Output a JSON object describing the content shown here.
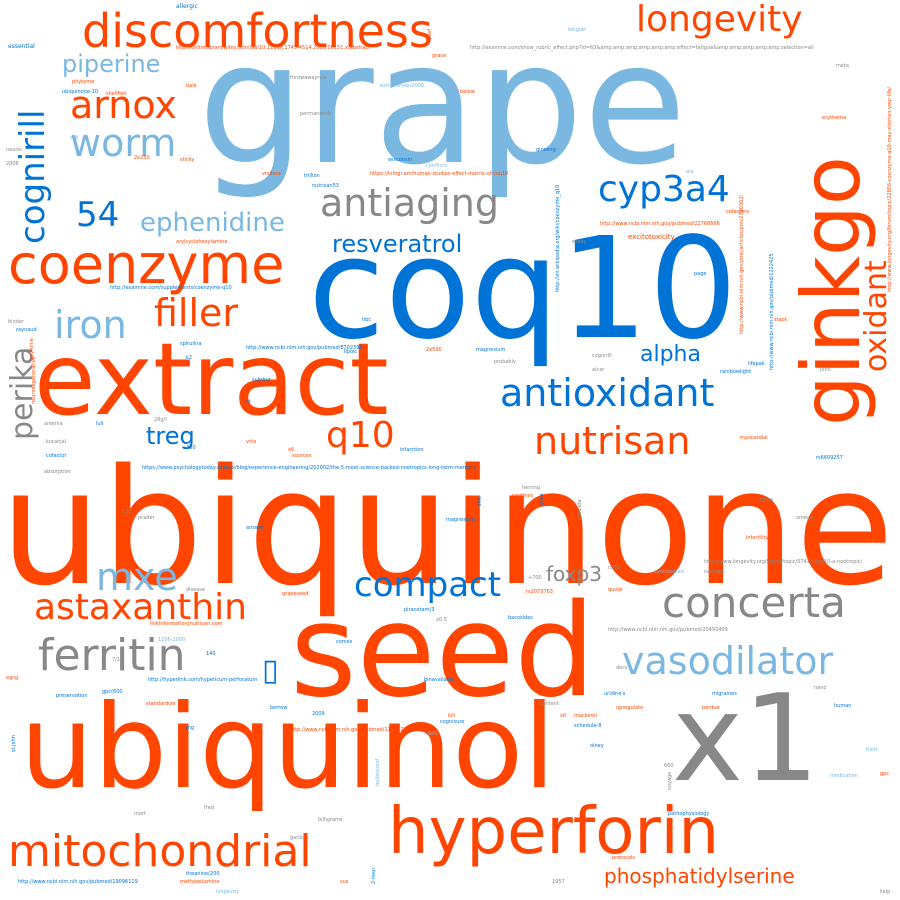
{
  "colors": {
    "orange": "#ff4500",
    "blue": "#0073d6",
    "light_blue": "#7ab8e2",
    "gray": "#888888"
  },
  "words": [
    {
      "text": "ubiquinone",
      "color": "orange"
    },
    {
      "text": "grape",
      "color": "light_blue"
    },
    {
      "text": "coq10",
      "color": "blue"
    },
    {
      "text": "seed",
      "color": "orange"
    },
    {
      "text": "extract",
      "color": "orange"
    },
    {
      "text": "ubiquinol",
      "color": "orange"
    },
    {
      "text": "x1",
      "color": "gray"
    },
    {
      "text": "hyperforin",
      "color": "orange"
    },
    {
      "text": "ginkgo",
      "color": "orange"
    },
    {
      "text": "discomfortness",
      "color": "orange"
    },
    {
      "text": "coenzyme",
      "color": "orange"
    },
    {
      "text": "longevity",
      "color": "orange"
    },
    {
      "text": "mitochondrial",
      "color": "orange"
    },
    {
      "text": "antioxidant",
      "color": "blue"
    },
    {
      "text": "concerta",
      "color": "gray"
    },
    {
      "text": "antiaging",
      "color": "gray"
    },
    {
      "text": "nutrisan",
      "color": "orange"
    },
    {
      "text": "cognirill",
      "color": "blue"
    },
    {
      "text": "vasodilator",
      "color": "light_blue"
    },
    {
      "text": "ferritin",
      "color": "gray"
    },
    {
      "text": "astaxanthin",
      "color": "orange"
    },
    {
      "text": "compact",
      "color": "blue"
    },
    {
      "text": "cyp3a4",
      "color": "blue"
    },
    {
      "text": "oxidant",
      "color": "orange"
    },
    {
      "text": "arnox",
      "color": "orange"
    },
    {
      "text": "worm",
      "color": "light_blue"
    },
    {
      "text": "filler",
      "color": "orange"
    },
    {
      "text": "iron",
      "color": "light_blue"
    },
    {
      "text": "q10",
      "color": "orange"
    },
    {
      "text": "mxe",
      "color": "light_blue"
    },
    {
      "text": "perika",
      "color": "gray"
    },
    {
      "text": "phosphatidylserine",
      "color": "orange"
    },
    {
      "text": "resveratrol",
      "color": "blue"
    },
    {
      "text": "ephenidine",
      "color": "light_blue"
    },
    {
      "text": "piperine",
      "color": "light_blue"
    },
    {
      "text": "54",
      "color": "blue"
    },
    {
      "text": "alpha",
      "color": "blue"
    },
    {
      "text": "treg",
      "color": "blue"
    },
    {
      "text": "foxp3",
      "color": "gray"
    },
    {
      "text": "excitotoxicity",
      "color": "orange"
    },
    {
      "text": "essential",
      "color": "blue"
    },
    {
      "text": "allergic",
      "color": "blue"
    },
    {
      "text": "http://onlinelibrary.wiley.com/doi/10.1111/j.1745-4514.2008.00151.x/abstract",
      "color": "orange"
    },
    {
      "text": "http://examine.com/show_rubric_effect.php?id=63&amp;amp;amp;amp;amp;amp;effect=fatigue&amp;amp;amp;amp;amp;selection=all",
      "color": "gray"
    },
    {
      "text": "https://www.psychologytoday.com/us/blog/experience-engineering/202002/the-5-most-science-backed-nootropics-long-term-memory",
      "color": "blue"
    },
    {
      "text": "http://www.ncbi.nlm.nih.gov/pubmed/8702395",
      "color": "blue"
    },
    {
      "text": "http://www.ncbi.nlm.nih.gov/pubmed/20493499",
      "color": "gray"
    },
    {
      "text": "http://www.ncbi.nlm.nih.gov/pubmed/22768666",
      "color": "orange"
    },
    {
      "text": "http://www.ncbi.nlm.nih.gov/pubmed/11983225",
      "color": "orange"
    },
    {
      "text": "http://www.ncbi.nlm.nih.gov/pubmed/19096119",
      "color": "blue"
    },
    {
      "text": "http://www.longevity.org/forum/topic/57413-coq10-a-nootropic/",
      "color": "gray"
    },
    {
      "text": "https://infogr.am/human-studies-effect-matrix-of-coq10",
      "color": "orange"
    },
    {
      "text": "http://www.ncbi.nlm.nih.gov/pmc/articles/pmc2790362/",
      "color": "orange"
    },
    {
      "text": "http://www.ncbi.nlm.nih.gov/pubmed/1222425",
      "color": "blue"
    },
    {
      "text": "http://www.longevity.org/forum/topic/22856-coenzyme-q10-may-shorten-your-life/",
      "color": "orange"
    },
    {
      "text": "http://en.wikipedia.org/wiki/coenzyme_q10",
      "color": "blue"
    },
    {
      "text": "http://examine.com/supplements/coenzyme-q10",
      "color": "blue"
    },
    {
      "text": "http://hyperlink.com/hypericum-perforatum",
      "color": "blue"
    },
    {
      "text": "linkinformation[nutrisan.com",
      "color": "orange"
    },
    {
      "text": "phytome",
      "color": "orange"
    },
    {
      "text": "bale",
      "color": "orange"
    },
    {
      "text": "shellfish",
      "color": "orange"
    },
    {
      "text": "ubiquinone-10",
      "color": "blue"
    },
    {
      "text": "throwawayrule",
      "color": "gray"
    },
    {
      "text": "extraversion2006",
      "color": "light_blue"
    },
    {
      "text": "below",
      "color": "orange"
    },
    {
      "text": "ginseng",
      "color": "blue"
    },
    {
      "text": "wisconsin",
      "color": "blue"
    },
    {
      "text": "vinifera",
      "color": "orange"
    },
    {
      "text": "trillion",
      "color": "blue"
    },
    {
      "text": "nutrisan53",
      "color": "blue"
    },
    {
      "text": "sticky",
      "color": "orange"
    },
    {
      "text": "2x250",
      "color": "orange"
    },
    {
      "text": "arylcyclohexylamine",
      "color": "orange"
    },
    {
      "text": "binder",
      "color": "gray"
    },
    {
      "text": "raynaud",
      "color": "blue"
    },
    {
      "text": "peyronie",
      "color": "orange"
    },
    {
      "text": "spirulina",
      "color": "blue"
    },
    {
      "text": "lipoic",
      "color": "blue"
    },
    {
      "text": "magnesium",
      "color": "blue"
    },
    {
      "text": "cognirill",
      "color": "gray"
    },
    {
      "text": "lifepak",
      "color": "blue"
    },
    {
      "text": "rainbowlight",
      "color": "blue"
    },
    {
      "text": "myocardial",
      "color": "orange"
    },
    {
      "text": "infarction",
      "color": "blue"
    },
    {
      "text": "sardines",
      "color": "orange"
    },
    {
      "text": "herring",
      "color": "gray"
    },
    {
      "text": "magnesium",
      "color": "blue"
    },
    {
      "text": "piracetam(3",
      "color": "blue"
    },
    {
      "text": "bacosides",
      "color": "blue"
    },
    {
      "text": "x0.5",
      "color": "gray"
    },
    {
      "text": "quote",
      "color": "orange"
    },
    {
      "text": "naringin",
      "color": "gray"
    },
    {
      "text": "synthesized",
      "color": "light_blue"
    },
    {
      "text": "infertility",
      "color": "orange"
    },
    {
      "text": "rs6609257",
      "color": "blue"
    },
    {
      "text": "rs2073763",
      "color": "orange"
    },
    {
      "text": "binavailable",
      "color": "blue"
    },
    {
      "text": "uridine's",
      "color": "blue"
    },
    {
      "text": "migraines",
      "color": "blue"
    },
    {
      "text": "upregulate",
      "color": "orange"
    },
    {
      "text": "perdue",
      "color": "orange"
    },
    {
      "text": "human",
      "color": "blue"
    },
    {
      "text": "mackerel",
      "color": "orange"
    },
    {
      "text": "schedule-8",
      "color": "blue"
    },
    {
      "text": "olney",
      "color": "blue"
    },
    {
      "text": "pathophysiology",
      "color": "blue"
    },
    {
      "text": "preservation",
      "color": "blue"
    },
    {
      "text": "standardize",
      "color": "orange"
    },
    {
      "text": "borrow",
      "color": "blue"
    },
    {
      "text": "gpc(600",
      "color": "blue"
    },
    {
      "text": "cognisure",
      "color": "blue"
    },
    {
      "text": "content",
      "color": "gray"
    },
    {
      "text": "grapeseed",
      "color": "orange"
    },
    {
      "text": "disease",
      "color": "gray"
    },
    {
      "text": "prader",
      "color": "gray"
    },
    {
      "text": "answer",
      "color": "blue"
    },
    {
      "text": "absorption",
      "color": "gray"
    },
    {
      "text": "cofactor",
      "color": "blue"
    },
    {
      "text": "anemia",
      "color": "gray"
    },
    {
      "text": "lull",
      "color": "blue"
    },
    {
      "text": "vitis",
      "color": "orange"
    },
    {
      "text": "sources",
      "color": "orange"
    },
    {
      "text": "sulphur",
      "color": "blue"
    },
    {
      "text": "neurodegenerative",
      "color": "orange"
    },
    {
      "text": "egcg",
      "color": "orange"
    },
    {
      "text": "st.john",
      "color": "blue"
    },
    {
      "text": "methoxetamine",
      "color": "orange"
    },
    {
      "text": "theanine(200",
      "color": "blue"
    },
    {
      "text": "longevity",
      "color": "light_blue"
    },
    {
      "text": "bulletproof",
      "color": "light_blue"
    },
    {
      "text": "medication",
      "color": "light_blue"
    },
    {
      "text": "food",
      "color": "light_blue"
    },
    {
      "text": "gpc",
      "color": "orange"
    },
    {
      "text": "kelp",
      "color": "gray"
    },
    {
      "text": "protocols",
      "color": "orange"
    },
    {
      "text": "1957",
      "color": "gray"
    },
    {
      "text": "erythema",
      "color": "orange"
    },
    {
      "text": "stack",
      "color": "orange"
    },
    {
      "text": "cofactors",
      "color": "orange"
    },
    {
      "text": "meta",
      "color": "gray"
    },
    {
      "text": "belgian",
      "color": "light_blue"
    },
    {
      "text": "grace",
      "color": "orange"
    },
    {
      "text": "beef",
      "color": "orange"
    },
    {
      "text": "neurol",
      "color": "gray"
    },
    {
      "text": "2006",
      "color": "gray"
    },
    {
      "text": "permanently",
      "color": "gray"
    },
    {
      "text": "conflicts",
      "color": "light_blue"
    },
    {
      "text": "ala",
      "color": "light_blue"
    },
    {
      "text": "essay",
      "color": "gray"
    },
    {
      "text": "page",
      "color": "blue"
    },
    {
      "text": "john",
      "color": "gray"
    },
    {
      "text": "vit",
      "color": "orange"
    },
    {
      "text": "k2",
      "color": "blue"
    },
    {
      "text": "mg",
      "color": "blue"
    },
    {
      "text": "2009",
      "color": "blue"
    },
    {
      "text": "kill",
      "color": "orange"
    },
    {
      "text": "fred",
      "color": "gray"
    },
    {
      "text": "mort",
      "color": "gray"
    },
    {
      "text": "billigrams",
      "color": "gray"
    },
    {
      "text": "garlic",
      "color": "gray"
    },
    {
      "text": "rhodiola",
      "color": "gray"
    },
    {
      "text": "silica",
      "color": "blue"
    },
    {
      "text": "zinc",
      "color": "blue"
    },
    {
      "text": "ratio",
      "color": "gray"
    },
    {
      "text": "decs",
      "color": "gray"
    },
    {
      "text": "nano",
      "color": "gray"
    },
    {
      "text": "omega",
      "color": "gray"
    },
    {
      "text": "comes",
      "color": "blue"
    },
    {
      "text": "2x500",
      "color": "orange"
    },
    {
      "text": "1206-1000",
      "color": "light_blue"
    },
    {
      "text": "kuranjal",
      "color": "gray"
    },
    {
      "text": "alcar",
      "color": "gray"
    },
    {
      "text": "probably",
      "color": "gray"
    },
    {
      "text": "voyage",
      "color": "gray"
    },
    {
      "text": "660",
      "color": "gray"
    },
    {
      "text": "s.600",
      "color": "light_blue"
    },
    {
      "text": "7/10",
      "color": "gray"
    },
    {
      "text": "+700",
      "color": "gray"
    },
    {
      "text": "28g/l",
      "color": "gray"
    },
    {
      "text": "+350",
      "color": "blue"
    },
    {
      "text": "130",
      "color": "gray"
    },
    {
      "text": "140",
      "color": "blue"
    },
    {
      "text": "hbc",
      "color": "blue"
    },
    {
      "text": "x6",
      "color": "orange"
    },
    {
      "text": "ct",
      "color": "blue"
    },
    {
      "text": "soil",
      "color": "light_blue"
    },
    {
      "text": "2-hour",
      "color": "blue"
    },
    {
      "text": "mma",
      "color": "gray"
    },
    {
      "text": "sus",
      "color": "orange"
    },
    {
      "text": "▯",
      "color": "blue"
    }
  ]
}
